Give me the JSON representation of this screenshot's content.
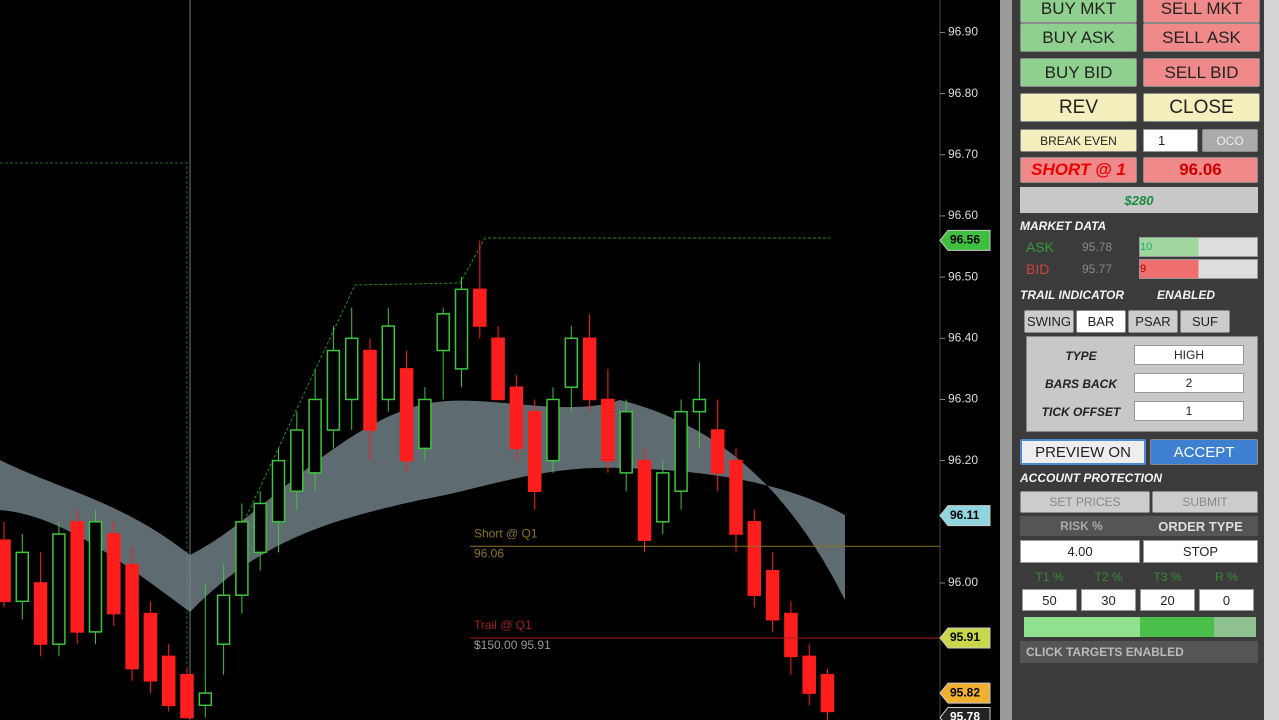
{
  "chart": {
    "type": "candlestick",
    "ylim": [
      95.776,
      96.953
    ],
    "yticks": [
      {
        "value": 96.9,
        "label": "96.90"
      },
      {
        "value": 96.8,
        "label": "96.80"
      },
      {
        "value": 96.7,
        "label": "96.70"
      },
      {
        "value": 96.6,
        "label": "96.60"
      },
      {
        "value": 96.5,
        "label": "96.50"
      },
      {
        "value": 96.4,
        "label": "96.40"
      },
      {
        "value": 96.3,
        "label": "96.30"
      },
      {
        "value": 96.2,
        "label": "96.20"
      },
      {
        "value": 96,
        "label": "96.00"
      }
    ],
    "candles": {
      "open": [
        96.07,
        95.97,
        96.0,
        95.9,
        96.1,
        95.92,
        96.08,
        96.03,
        95.95,
        95.88,
        95.85,
        95.8,
        95.9,
        95.98,
        96.05,
        96.1,
        96.15,
        96.18,
        96.25,
        96.3,
        96.38,
        96.3,
        96.35,
        96.22,
        96.38,
        96.35,
        96.48,
        96.4,
        96.32,
        96.28,
        96.2,
        96.32,
        96.4,
        96.3,
        96.18,
        96.2,
        96.1,
        96.15,
        96.28,
        96.25,
        96.2,
        96.1,
        96.02,
        95.95,
        95.88,
        95.85
      ],
      "high": [
        96.1,
        96.08,
        96.05,
        96.1,
        96.12,
        96.12,
        96.1,
        96.06,
        95.97,
        95.9,
        95.86,
        96.0,
        96.03,
        96.13,
        96.15,
        96.22,
        96.28,
        96.35,
        96.42,
        96.45,
        96.4,
        96.45,
        96.38,
        96.32,
        96.45,
        96.5,
        96.56,
        96.42,
        96.34,
        96.3,
        96.32,
        96.42,
        96.44,
        96.35,
        96.3,
        96.22,
        96.2,
        96.3,
        96.36,
        96.3,
        96.22,
        96.12,
        96.05,
        95.97,
        95.9,
        95.86
      ],
      "low": [
        95.96,
        95.94,
        95.88,
        95.88,
        95.9,
        95.9,
        95.93,
        95.84,
        95.82,
        95.79,
        95.78,
        95.78,
        95.85,
        95.95,
        96.02,
        96.05,
        96.12,
        96.15,
        96.22,
        96.25,
        96.2,
        96.28,
        96.18,
        96.2,
        96.3,
        96.32,
        96.4,
        96.32,
        96.2,
        96.12,
        96.18,
        96.28,
        96.28,
        96.18,
        96.15,
        96.05,
        96.08,
        96.12,
        96.22,
        96.15,
        96.05,
        95.96,
        95.92,
        95.85,
        95.8,
        95.77
      ],
      "close": [
        95.97,
        96.05,
        95.9,
        96.08,
        95.92,
        96.1,
        95.95,
        95.86,
        95.84,
        95.8,
        95.78,
        95.82,
        95.98,
        96.1,
        96.13,
        96.2,
        96.25,
        96.3,
        96.38,
        96.4,
        96.25,
        96.42,
        96.2,
        96.3,
        96.44,
        96.48,
        96.42,
        96.3,
        96.22,
        96.15,
        96.3,
        96.4,
        96.3,
        96.2,
        96.28,
        96.07,
        96.18,
        96.28,
        96.3,
        96.18,
        96.08,
        95.98,
        95.94,
        95.88,
        95.82,
        95.79
      ]
    },
    "price_tags": [
      {
        "value": 96.56,
        "color": "#3fbf3f"
      },
      {
        "value": 96.11,
        "color": "#8fd6e0"
      },
      {
        "value": 95.91,
        "color": "#c8d84a"
      },
      {
        "value": 95.82,
        "color": "#f0b030"
      },
      {
        "value": 95.78,
        "color": "#222222"
      }
    ],
    "orders": [
      {
        "label": "Short @ Q1",
        "price": 96.06,
        "color": "#8a7420"
      },
      {
        "label": "Trail @ Q1",
        "detail": "$150.00 95.91",
        "price": 95.91,
        "color": "#a02020"
      }
    ]
  },
  "panel": {
    "buttons": [
      "BUY MKT",
      "SELL MKT",
      "BUY ASK",
      "SELL ASK",
      "BUY BID",
      "SELL BID",
      "REV",
      "CLOSE"
    ],
    "break_even": "BREAK EVEN",
    "quantity": "1",
    "oco": "OCO",
    "position": "SHORT @ 1",
    "position_price": "96.06",
    "pnl": "$280",
    "market_data": {
      "title": "MARKET DATA",
      "ask_label": "ASK",
      "ask": "95.78",
      "ask_size": "10",
      "bid_label": "BID",
      "bid": "95.77",
      "bid_size": "9"
    },
    "trail": {
      "title": "TRAIL INDICATOR",
      "enabled": "ENABLED",
      "tabs": [
        "SWING",
        "BAR",
        "PSAR",
        "SUF"
      ],
      "fields": [
        [
          "TYPE",
          "HIGH"
        ],
        [
          "BARS BACK",
          "2"
        ],
        [
          "TICK OFFSET",
          "1"
        ]
      ],
      "preview": "PREVIEW ON",
      "accept": "ACCEPT"
    },
    "protection": {
      "title": "ACCOUNT PROTECTION",
      "set_prices": "SET PRICES",
      "submit": "SUBMIT",
      "risk_label": "RISK %",
      "order_type_label": "ORDER TYPE",
      "risk": "4.00",
      "order_type": "STOP",
      "target_labels": [
        "T1 %",
        "T2 %",
        "T3 %",
        "R %"
      ],
      "targets": [
        "50",
        "30",
        "20",
        "0"
      ],
      "click_targets": "CLICK TARGETS ENABLED"
    }
  }
}
